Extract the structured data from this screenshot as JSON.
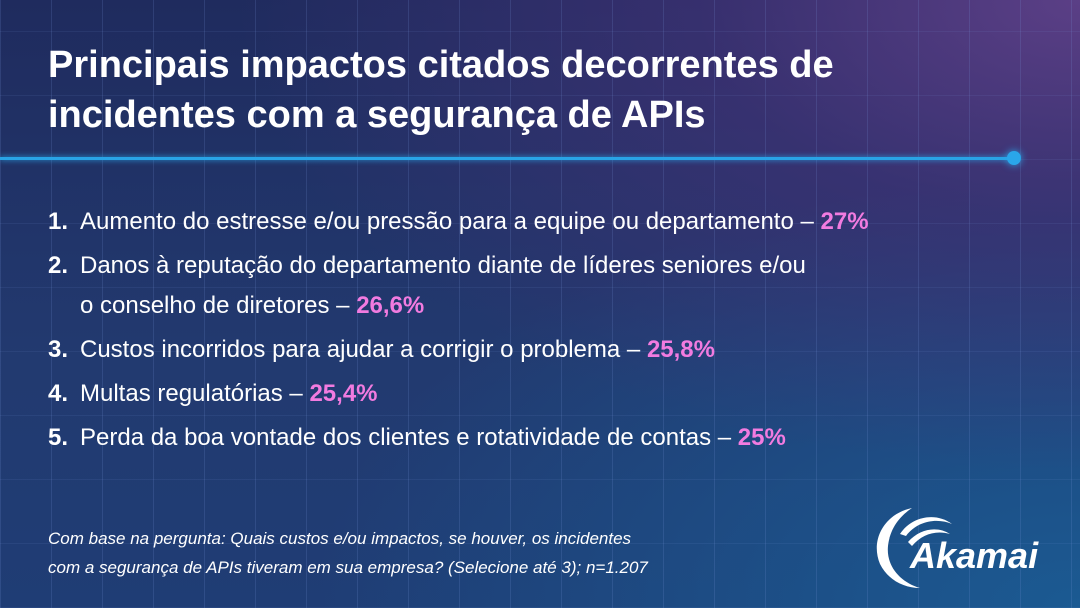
{
  "title": {
    "line1": "Principais impactos citados decorrentes de",
    "line2": "incidentes com a segurança de APIs"
  },
  "items": [
    {
      "num": "1.",
      "text": "Aumento do estresse e/ou pressão para a equipe ou departamento – ",
      "pct": "27%"
    },
    {
      "num": "2.",
      "text": "Danos à reputação do departamento diante de líderes seniores e/ou",
      "text2": "o conselho de diretores – ",
      "pct": "26,6%"
    },
    {
      "num": "3.",
      "text": "Custos incorridos para ajudar a corrigir o problema – ",
      "pct": "25,8%"
    },
    {
      "num": "4.",
      "text": "Multas regulatórias – ",
      "pct": "25,4%"
    },
    {
      "num": "5.",
      "text": "Perda da boa vontade dos clientes e rotatividade de contas – ",
      "pct": "25%"
    }
  ],
  "footnote": {
    "line1": "Com base na pergunta: Quais custos e/ou impactos, se houver, os incidentes",
    "line2": "com a segurança de APIs tiveram em sua empresa? (Selecione até 3); n=1.207"
  },
  "logo": {
    "text": "Akamai"
  },
  "colors": {
    "accent_pct": "#f27be0",
    "line": "#29a3e6",
    "background": "#1f2b5e"
  }
}
